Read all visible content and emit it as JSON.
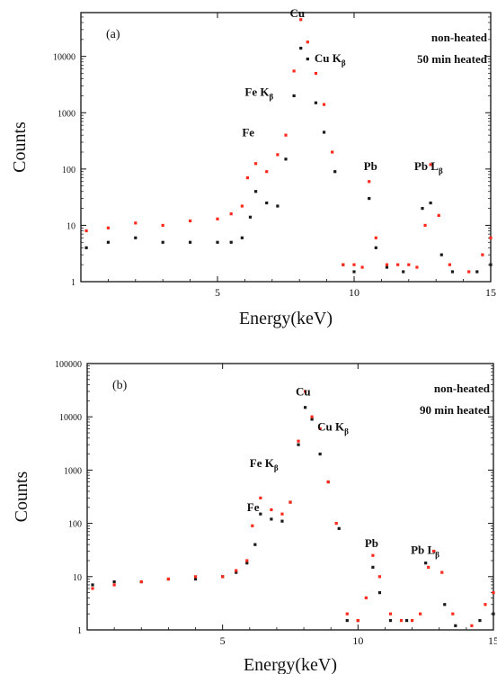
{
  "colors": {
    "non_heated": "#ff2a1a",
    "heated_50min": "#1a1a1a",
    "axis": "#111111"
  },
  "chart_data": [
    {
      "type": "scatter",
      "panel_label": "(a)",
      "xlabel": "Energy(keV)",
      "ylabel": "Counts",
      "x_ticks": [
        {
          "v": 0,
          "label": ""
        },
        {
          "v": 5,
          "label": "5"
        },
        {
          "v": 10,
          "label": "10"
        },
        {
          "v": 15,
          "label": "15"
        }
      ],
      "y_ticks": [
        {
          "v": 1,
          "label": "1"
        },
        {
          "v": 10,
          "label": "10"
        },
        {
          "v": 100,
          "label": "100"
        },
        {
          "v": 1000,
          "label": "1000"
        },
        {
          "v": 10000,
          "label": "10000"
        }
      ],
      "xlim": [
        0,
        15
      ],
      "ylim": [
        1,
        60000
      ],
      "yscale": "log",
      "legend": [
        "non-heated",
        "50 min heated"
      ],
      "legend_position": "top-right",
      "series": [
        {
          "name": "non-heated",
          "x": [
            0.2,
            1.0,
            2.0,
            3.0,
            4.0,
            5.0,
            5.5,
            5.9,
            6.1,
            6.4,
            6.8,
            7.2,
            7.5,
            7.8,
            8.05,
            8.3,
            8.6,
            8.9,
            9.2,
            9.6,
            10.0,
            10.3,
            10.55,
            10.8,
            11.2,
            11.6,
            12.0,
            12.3,
            12.6,
            12.8,
            13.1,
            13.5,
            14.2,
            14.7,
            15.0
          ],
          "y": [
            8,
            9,
            11,
            10,
            12,
            13,
            16,
            22,
            70,
            125,
            90,
            180,
            400,
            5500,
            45000,
            18000,
            5000,
            1400,
            200,
            2,
            2,
            1.8,
            60,
            6,
            2,
            2,
            2,
            1.8,
            10,
            120,
            15,
            2,
            1.5,
            3,
            6
          ]
        },
        {
          "name": "50 min heated",
          "x": [
            0.2,
            1.0,
            2.0,
            3.0,
            4.0,
            5.0,
            5.5,
            5.9,
            6.2,
            6.4,
            6.8,
            7.2,
            7.5,
            7.8,
            8.05,
            8.3,
            8.6,
            8.9,
            9.3,
            9.6,
            10.0,
            10.55,
            10.8,
            11.2,
            11.8,
            12.5,
            12.8,
            13.2,
            13.6,
            14.5,
            15.0
          ],
          "y": [
            4,
            5,
            6,
            5,
            5,
            5,
            5,
            6,
            14,
            40,
            25,
            22,
            150,
            2000,
            14000,
            9000,
            1500,
            450,
            90,
            2,
            1.5,
            30,
            4,
            1.8,
            1.5,
            20,
            25,
            3,
            1.5,
            1.5,
            2
          ]
        }
      ],
      "annotations": [
        {
          "text": "Fe",
          "x": 5.9,
          "y": 380
        },
        {
          "text": "Fe K",
          "sub": "β",
          "x": 6.0,
          "y": 2000
        },
        {
          "text": "Cu",
          "x": 7.65,
          "y": 50000
        },
        {
          "text": "Cu K",
          "sub": "β",
          "x": 8.55,
          "y": 8000
        },
        {
          "text": "Pb",
          "x": 10.35,
          "y": 95
        },
        {
          "text": "Pb L",
          "sub": "β",
          "x": 12.2,
          "y": 95
        }
      ]
    },
    {
      "type": "scatter",
      "panel_label": "(b)",
      "xlabel": "Energy(keV)",
      "ylabel": "Counts",
      "x_ticks": [
        {
          "v": 0,
          "label": ""
        },
        {
          "v": 5,
          "label": "5"
        },
        {
          "v": 10,
          "label": "10"
        },
        {
          "v": 15,
          "label": "15"
        }
      ],
      "y_ticks": [
        {
          "v": 1,
          "label": "1"
        },
        {
          "v": 10,
          "label": "10"
        },
        {
          "v": 100,
          "label": "100"
        },
        {
          "v": 1000,
          "label": "1000"
        },
        {
          "v": 10000,
          "label": "10000"
        },
        {
          "v": 100000,
          "label": "100000"
        }
      ],
      "xlim": [
        0,
        15
      ],
      "ylim": [
        1,
        100000
      ],
      "yscale": "log",
      "legend": [
        "non-heated",
        "90 min heated"
      ],
      "legend_position": "top-right",
      "series": [
        {
          "name": "non-heated",
          "x": [
            0.2,
            1.0,
            2.0,
            3.0,
            4.0,
            5.0,
            5.5,
            5.9,
            6.1,
            6.4,
            6.8,
            7.2,
            7.5,
            7.8,
            8.05,
            8.3,
            8.6,
            8.9,
            9.2,
            9.6,
            10.0,
            10.3,
            10.55,
            10.8,
            11.2,
            11.6,
            12.0,
            12.3,
            12.6,
            12.8,
            13.1,
            13.5,
            14.2,
            14.7,
            15.0
          ],
          "y": [
            6,
            7,
            8,
            9,
            10,
            10,
            13,
            20,
            90,
            300,
            180,
            150,
            250,
            3500,
            30000,
            10000,
            6000,
            600,
            100,
            2,
            1.5,
            4,
            25,
            10,
            2,
            1.5,
            1.5,
            2,
            15,
            30,
            12,
            2,
            1.2,
            3,
            5
          ]
        },
        {
          "name": "90 min heated",
          "x": [
            0.2,
            1.0,
            2.0,
            3.0,
            4.0,
            5.0,
            5.5,
            5.9,
            6.2,
            6.4,
            6.8,
            7.2,
            7.5,
            7.8,
            8.05,
            8.3,
            8.6,
            8.9,
            9.3,
            9.6,
            10.0,
            10.55,
            10.8,
            11.2,
            11.8,
            12.5,
            12.8,
            13.2,
            13.6,
            14.5,
            15.0
          ],
          "y": [
            7,
            8,
            8,
            9,
            9,
            10,
            12,
            18,
            40,
            150,
            120,
            110,
            250,
            3000,
            15000,
            9000,
            2000,
            600,
            80,
            1.5,
            1.5,
            15,
            5,
            1.5,
            1.5,
            18,
            30,
            3,
            1.2,
            1.5,
            2
          ]
        }
      ],
      "annotations": [
        {
          "text": "Fe",
          "x": 5.9,
          "y": 170
        },
        {
          "text": "Fe K",
          "sub": "β",
          "x": 6.0,
          "y": 1150
        },
        {
          "text": "Cu",
          "x": 7.7,
          "y": 25000
        },
        {
          "text": "Cu K",
          "sub": "β",
          "x": 8.5,
          "y": 5500
        },
        {
          "text": "Pb",
          "x": 10.25,
          "y": 36
        },
        {
          "text": "Pb L",
          "sub": "β",
          "x": 11.95,
          "y": 27
        }
      ]
    }
  ]
}
